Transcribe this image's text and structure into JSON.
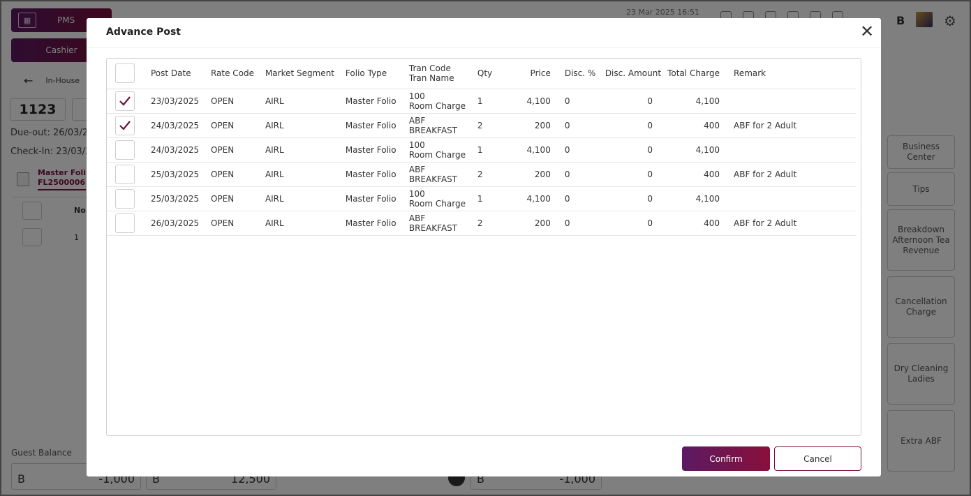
{
  "app": {
    "pms_label": "PMS",
    "cashier_label": "Cashier",
    "back_label": "In-House",
    "room_number": "1123",
    "due_out": "Due-out: 26/03/2",
    "check_in": "Check-In: 23/03/2",
    "folio_tab": {
      "line1": "Master Foli",
      "line2": "FL2500006"
    },
    "left_table_header_no": "No.",
    "left_table_row_no": "1",
    "guest_balance_label": "Guest Balance",
    "balance_b1": "B",
    "balance_v1": "-1,000",
    "balance_b2": "B",
    "balance_v2": "12,500",
    "balance_b3": "B",
    "balance_v3": "-1,000",
    "date_time": "23 Mar 2025  16:51",
    "top_b_label": "B",
    "right_buttons": [
      "Business Center",
      "Tips",
      "Breakdown Afternoon Tea Revenue",
      "Cancellation Charge",
      "Dry Cleaning Ladies",
      "Extra ABF"
    ]
  },
  "dialog": {
    "title": "Advance Post",
    "columns": {
      "post_date": "Post Date",
      "rate_code": "Rate Code",
      "market_segment": "Market Segment",
      "folio_type": "Folio Type",
      "tran_code": "Tran Code",
      "tran_name": "Tran Name",
      "qty": "Qty",
      "price": "Price",
      "disc_pct": "Disc. %",
      "disc_amount": "Disc. Amount",
      "total_charge": "Total Charge",
      "remark": "Remark"
    },
    "rows": [
      {
        "checked": true,
        "post_date": "23/03/2025",
        "rate_code": "OPEN",
        "market_segment": "AIRL",
        "folio_type": "Master Folio",
        "tran_code": "100",
        "tran_name": "Room Charge",
        "qty": "1",
        "price": "4,100",
        "disc_pct": "0",
        "disc_amount": "0",
        "total_charge": "4,100",
        "remark": ""
      },
      {
        "checked": true,
        "post_date": "24/03/2025",
        "rate_code": "OPEN",
        "market_segment": "AIRL",
        "folio_type": "Master Folio",
        "tran_code": "ABF",
        "tran_name": "BREAKFAST",
        "qty": "2",
        "price": "200",
        "disc_pct": "0",
        "disc_amount": "0",
        "total_charge": "400",
        "remark": "ABF for 2 Adult"
      },
      {
        "checked": false,
        "post_date": "24/03/2025",
        "rate_code": "OPEN",
        "market_segment": "AIRL",
        "folio_type": "Master Folio",
        "tran_code": "100",
        "tran_name": "Room Charge",
        "qty": "1",
        "price": "4,100",
        "disc_pct": "0",
        "disc_amount": "0",
        "total_charge": "4,100",
        "remark": ""
      },
      {
        "checked": false,
        "post_date": "25/03/2025",
        "rate_code": "OPEN",
        "market_segment": "AIRL",
        "folio_type": "Master Folio",
        "tran_code": "ABF",
        "tran_name": "BREAKFAST",
        "qty": "2",
        "price": "200",
        "disc_pct": "0",
        "disc_amount": "0",
        "total_charge": "400",
        "remark": "ABF for 2 Adult"
      },
      {
        "checked": false,
        "post_date": "25/03/2025",
        "rate_code": "OPEN",
        "market_segment": "AIRL",
        "folio_type": "Master Folio",
        "tran_code": "100",
        "tran_name": "Room Charge",
        "qty": "1",
        "price": "4,100",
        "disc_pct": "0",
        "disc_amount": "0",
        "total_charge": "4,100",
        "remark": ""
      },
      {
        "checked": false,
        "post_date": "26/03/2025",
        "rate_code": "OPEN",
        "market_segment": "AIRL",
        "folio_type": "Master Folio",
        "tran_code": "ABF",
        "tran_name": "BREAKFAST",
        "qty": "2",
        "price": "200",
        "disc_pct": "0",
        "disc_amount": "0",
        "total_charge": "400",
        "remark": "ABF for 2 Adult"
      }
    ],
    "confirm_label": "Confirm",
    "cancel_label": "Cancel"
  },
  "colors": {
    "accent_start": "#5b1a63",
    "accent_end": "#8a0f3a",
    "check": "#6a1340"
  }
}
